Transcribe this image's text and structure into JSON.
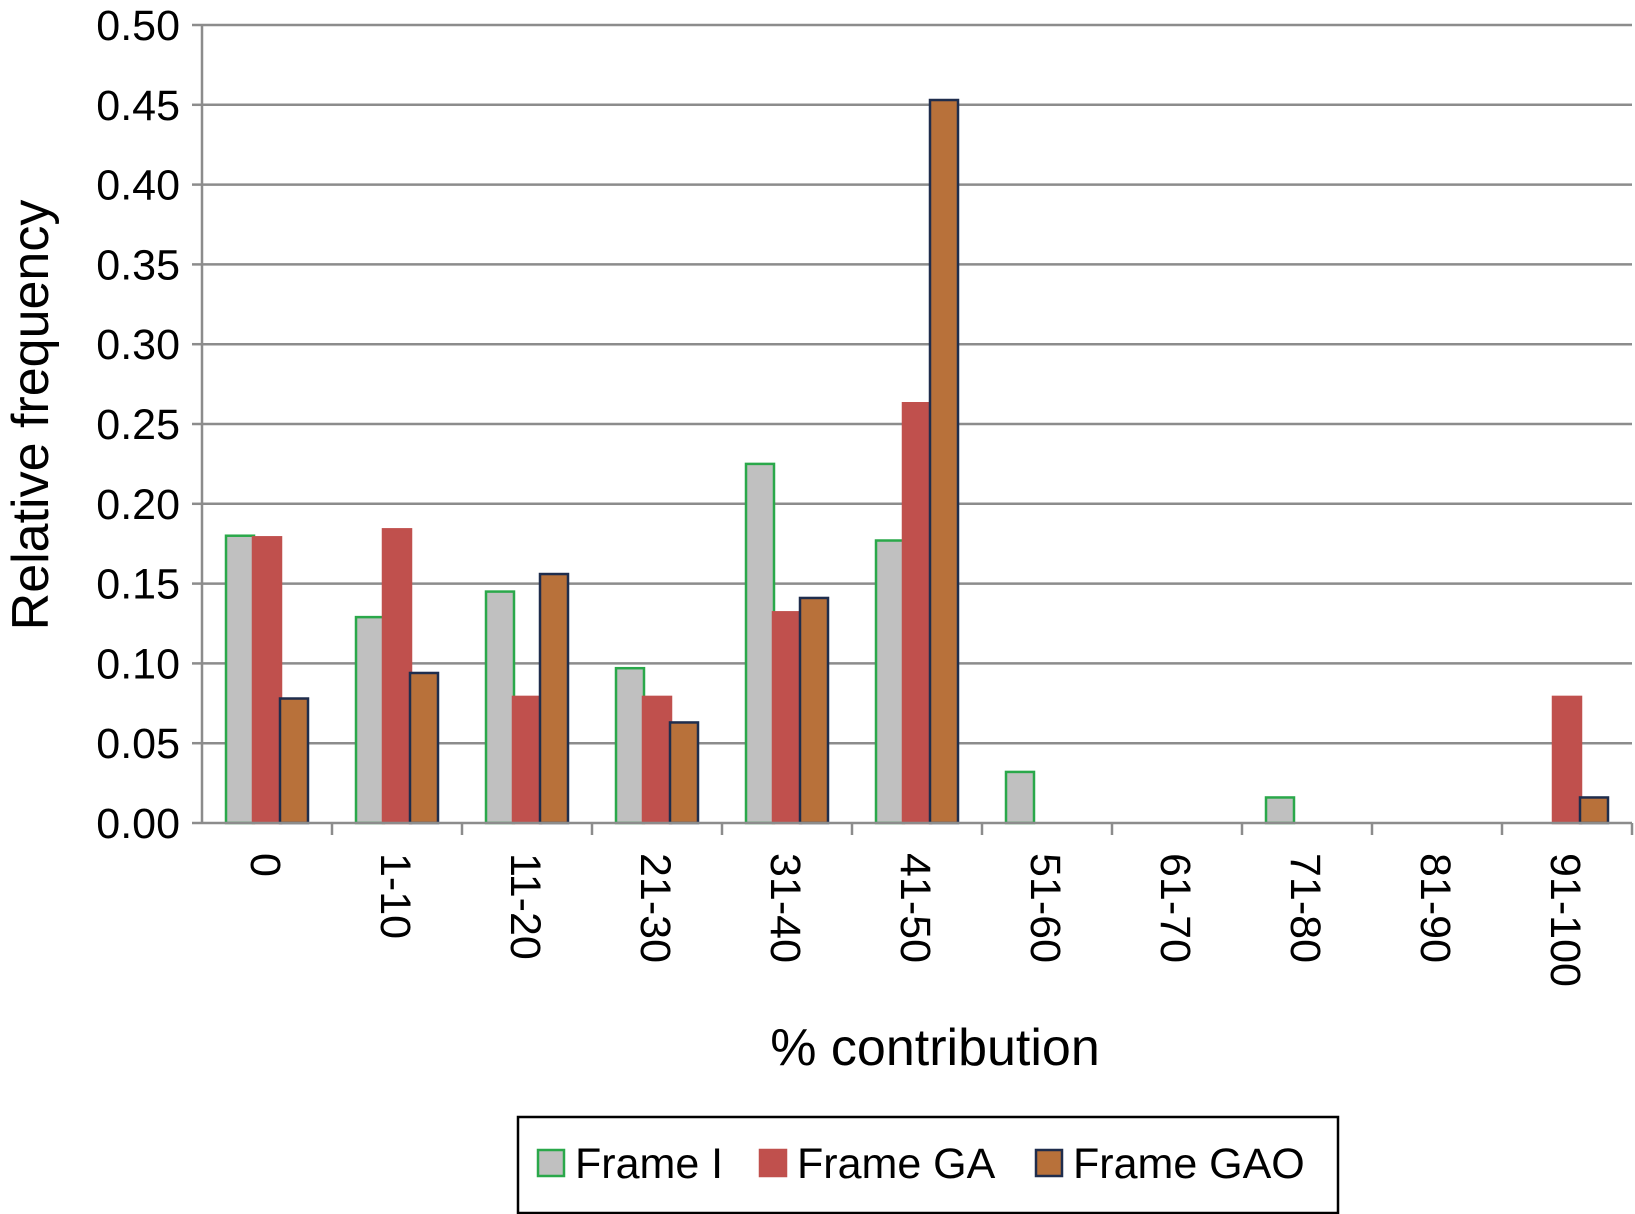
{
  "chart_data": {
    "type": "bar",
    "title": "",
    "xlabel": "% contribution",
    "ylabel": "Relative frequency",
    "ylim": [
      0,
      0.5
    ],
    "yticks": [
      "0.00",
      "0.05",
      "0.10",
      "0.15",
      "0.20",
      "0.25",
      "0.30",
      "0.35",
      "0.40",
      "0.45",
      "0.50"
    ],
    "grid": true,
    "legend_position": "bottom",
    "categories": [
      "0",
      "1-10",
      "11-20",
      "21-30",
      "31-40",
      "41-50",
      "51-60",
      "61-70",
      "71-80",
      "81-90",
      "91-100"
    ],
    "series": [
      {
        "name": "Frame I",
        "fill": "#c0c0c0",
        "stroke": "#2aa84a",
        "values": [
          0.18,
          0.129,
          0.145,
          0.097,
          0.225,
          0.177,
          0.032,
          0,
          0.016,
          0,
          0
        ]
      },
      {
        "name": "Frame GA",
        "fill": "#c0504d",
        "stroke": "#c0504d",
        "values": [
          0.179,
          0.184,
          0.079,
          0.079,
          0.132,
          0.263,
          0,
          0,
          0,
          0,
          0.079
        ]
      },
      {
        "name": "Frame GAO",
        "fill": "#b8713a",
        "stroke": "#1f2d4d",
        "values": [
          0.078,
          0.094,
          0.156,
          0.063,
          0.141,
          0.453,
          0,
          0,
          0,
          0,
          0.016
        ]
      }
    ]
  }
}
